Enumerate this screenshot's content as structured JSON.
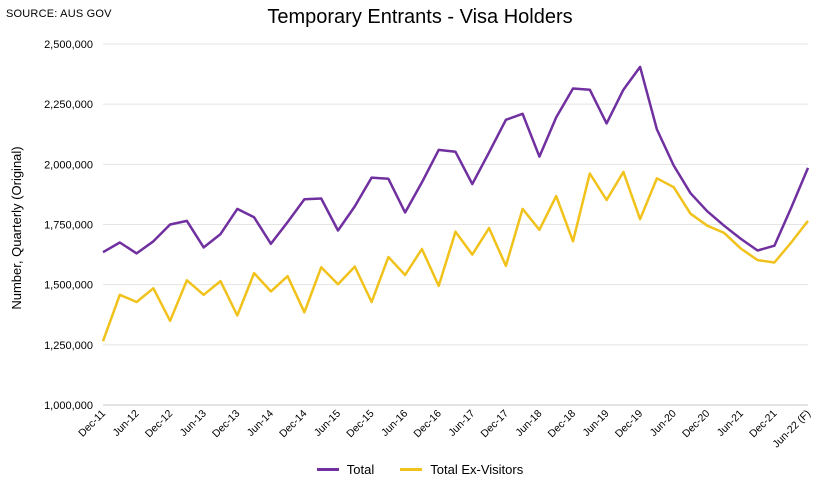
{
  "source": "SOURCE: AUS GOV",
  "chart_data": {
    "type": "line",
    "title": "Temporary Entrants - Visa Holders",
    "xlabel": "",
    "ylabel": "Number, Quarterly (Original)",
    "ylim": [
      1000000,
      2500000
    ],
    "yticks": [
      "1,000,000",
      "1,250,000",
      "1,500,000",
      "1,750,000",
      "2,000,000",
      "2,250,000",
      "2,500,000"
    ],
    "ytick_values": [
      1000000,
      1250000,
      1500000,
      1750000,
      2000000,
      2250000,
      2500000
    ],
    "x": [
      "Dec-11",
      "Mar-12",
      "Jun-12",
      "Sep-12",
      "Dec-12",
      "Mar-13",
      "Jun-13",
      "Sep-13",
      "Dec-13",
      "Mar-14",
      "Jun-14",
      "Sep-14",
      "Dec-14",
      "Mar-15",
      "Jun-15",
      "Sep-15",
      "Dec-15",
      "Mar-16",
      "Jun-16",
      "Sep-16",
      "Dec-16",
      "Mar-17",
      "Jun-17",
      "Sep-17",
      "Dec-17",
      "Mar-18",
      "Jun-18",
      "Sep-18",
      "Dec-18",
      "Mar-19",
      "Jun-19",
      "Sep-19",
      "Dec-19",
      "Mar-20",
      "Jun-20",
      "Sep-20",
      "Dec-20",
      "Mar-21",
      "Jun-21",
      "Sep-21",
      "Dec-21",
      "Mar-22",
      "Jun-22 (F)"
    ],
    "xtick_labels": [
      "Dec-11",
      "Jun-12",
      "Dec-12",
      "Jun-13",
      "Dec-13",
      "Jun-14",
      "Dec-14",
      "Jun-15",
      "Dec-15",
      "Jun-16",
      "Dec-16",
      "Jun-17",
      "Dec-17",
      "Jun-18",
      "Dec-18",
      "Jun-19",
      "Dec-19",
      "Jun-20",
      "Dec-20",
      "Jun-21",
      "Dec-21",
      "Jun-22 (F)"
    ],
    "grid": "horizontal",
    "legend": "bottom",
    "series": [
      {
        "name": "Total",
        "color": "#7030a0",
        "values": [
          1635000,
          1675000,
          1630000,
          1680000,
          1750000,
          1765000,
          1655000,
          1710000,
          1815000,
          1780000,
          1670000,
          1760000,
          1855000,
          1858000,
          1725000,
          1825000,
          1945000,
          1940000,
          1800000,
          1925000,
          2060000,
          2052000,
          1918000,
          2050000,
          2185000,
          2210000,
          2032000,
          2195000,
          2315000,
          2310000,
          2170000,
          2310000,
          2405000,
          2145000,
          1995000,
          1880000,
          1805000,
          1745000,
          1690000,
          1642000,
          1662000,
          1820000,
          1985000
        ]
      },
      {
        "name": "Total Ex-Visitors",
        "color": "#f1c21b",
        "values": [
          1265000,
          1458000,
          1428000,
          1485000,
          1350000,
          1518000,
          1458000,
          1515000,
          1372000,
          1548000,
          1472000,
          1535000,
          1385000,
          1572000,
          1502000,
          1575000,
          1428000,
          1615000,
          1540000,
          1648000,
          1495000,
          1720000,
          1625000,
          1735000,
          1578000,
          1815000,
          1728000,
          1868000,
          1680000,
          1962000,
          1852000,
          1968000,
          1772000,
          1942000,
          1905000,
          1795000,
          1745000,
          1715000,
          1650000,
          1602000,
          1592000,
          1675000,
          1765000
        ]
      }
    ]
  }
}
